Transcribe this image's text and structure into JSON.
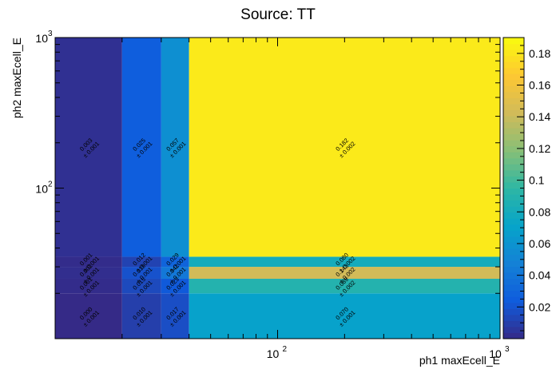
{
  "chart_data": {
    "type": "heatmap",
    "title": "Source: TT",
    "xlabel": "ph1 maxEcell_E",
    "ylabel": "ph2 maxEcell_E",
    "xscale": "log",
    "yscale": "log",
    "x_edges": [
      10,
      20,
      30,
      40,
      1000
    ],
    "y_edges": [
      10,
      20,
      25,
      30,
      35,
      40,
      1000
    ],
    "xlim": [
      10,
      1000
    ],
    "ylim": [
      10,
      1000
    ],
    "z_range": [
      0,
      0.19
    ],
    "z_ticks": [
      0.02,
      0.04,
      0.06,
      0.08,
      0.1,
      0.12,
      0.14,
      0.16,
      0.18
    ],
    "z_tick_labels": [
      "0.02",
      "0.04",
      "0.06",
      "0.08",
      "0.1",
      "0.12",
      "0.14",
      "0.16",
      "0.18"
    ],
    "x_tick_labels": [
      {
        "value": 100,
        "base": "10",
        "exp": "2"
      },
      {
        "value": 1000,
        "base": "10",
        "exp": "3"
      }
    ],
    "y_tick_labels": [
      {
        "value": 100,
        "base": "10",
        "exp": "2"
      },
      {
        "value": 1000,
        "base": "10",
        "exp": "3"
      }
    ],
    "palette": [
      "#352a87",
      "#0f5cdd",
      "#1481d6",
      "#06a4ca",
      "#2eb7a4",
      "#87bf77",
      "#d1bb59",
      "#fec832",
      "#f9fb0e"
    ],
    "cells": [
      {
        "x": 0,
        "y": 0,
        "value": 0.0,
        "label": "0.000",
        "error": "± 0.001"
      },
      {
        "x": 1,
        "y": 0,
        "value": 0.01,
        "label": "0.010",
        "error": "± 0.001"
      },
      {
        "x": 2,
        "y": 0,
        "value": 0.017,
        "label": "0.017",
        "error": "± 0.001"
      },
      {
        "x": 3,
        "y": 0,
        "value": 0.07,
        "label": "0.070",
        "error": "± 0.001"
      },
      {
        "x": 0,
        "y": 1,
        "value": 0.001,
        "label": "0.001",
        "error": "± 0.001"
      },
      {
        "x": 1,
        "y": 1,
        "value": 0.015,
        "label": "0.015",
        "error": "± 0.001"
      },
      {
        "x": 2,
        "y": 1,
        "value": 0.023,
        "label": "0.023",
        "error": "± 0.001"
      },
      {
        "x": 3,
        "y": 1,
        "value": 0.089,
        "label": "0.089",
        "error": "± 0.002"
      },
      {
        "x": 0,
        "y": 2,
        "value": 0.002,
        "label": "0.002",
        "error": "± 0.001"
      },
      {
        "x": 1,
        "y": 2,
        "value": 0.019,
        "label": "0.019",
        "error": "± 0.001"
      },
      {
        "x": 2,
        "y": 2,
        "value": 0.042,
        "label": "0.042",
        "error": "± 0.001"
      },
      {
        "x": 3,
        "y": 2,
        "value": 0.143,
        "label": "0.143",
        "error": "± 0.002"
      },
      {
        "x": 0,
        "y": 3,
        "value": 0.001,
        "label": "0.001",
        "error": "± 0.001"
      },
      {
        "x": 1,
        "y": 3,
        "value": 0.012,
        "label": "0.012",
        "error": "± 0.001"
      },
      {
        "x": 2,
        "y": 3,
        "value": 0.029,
        "label": "0.029",
        "error": "± 0.001"
      },
      {
        "x": 3,
        "y": 3,
        "value": 0.08,
        "label": "0.080",
        "error": "± 0.002"
      },
      {
        "x": 0,
        "y": 5,
        "value": 0.003,
        "label": "0.003",
        "error": "± 0.001"
      },
      {
        "x": 1,
        "y": 5,
        "value": 0.025,
        "label": "0.025",
        "error": "± 0.001"
      },
      {
        "x": 2,
        "y": 5,
        "value": 0.057,
        "label": "0.057",
        "error": "± 0.001"
      },
      {
        "x": 3,
        "y": 5,
        "value": 0.182,
        "label": "0.182",
        "error": "± 0.002"
      }
    ],
    "blank_rows": [
      4
    ]
  }
}
